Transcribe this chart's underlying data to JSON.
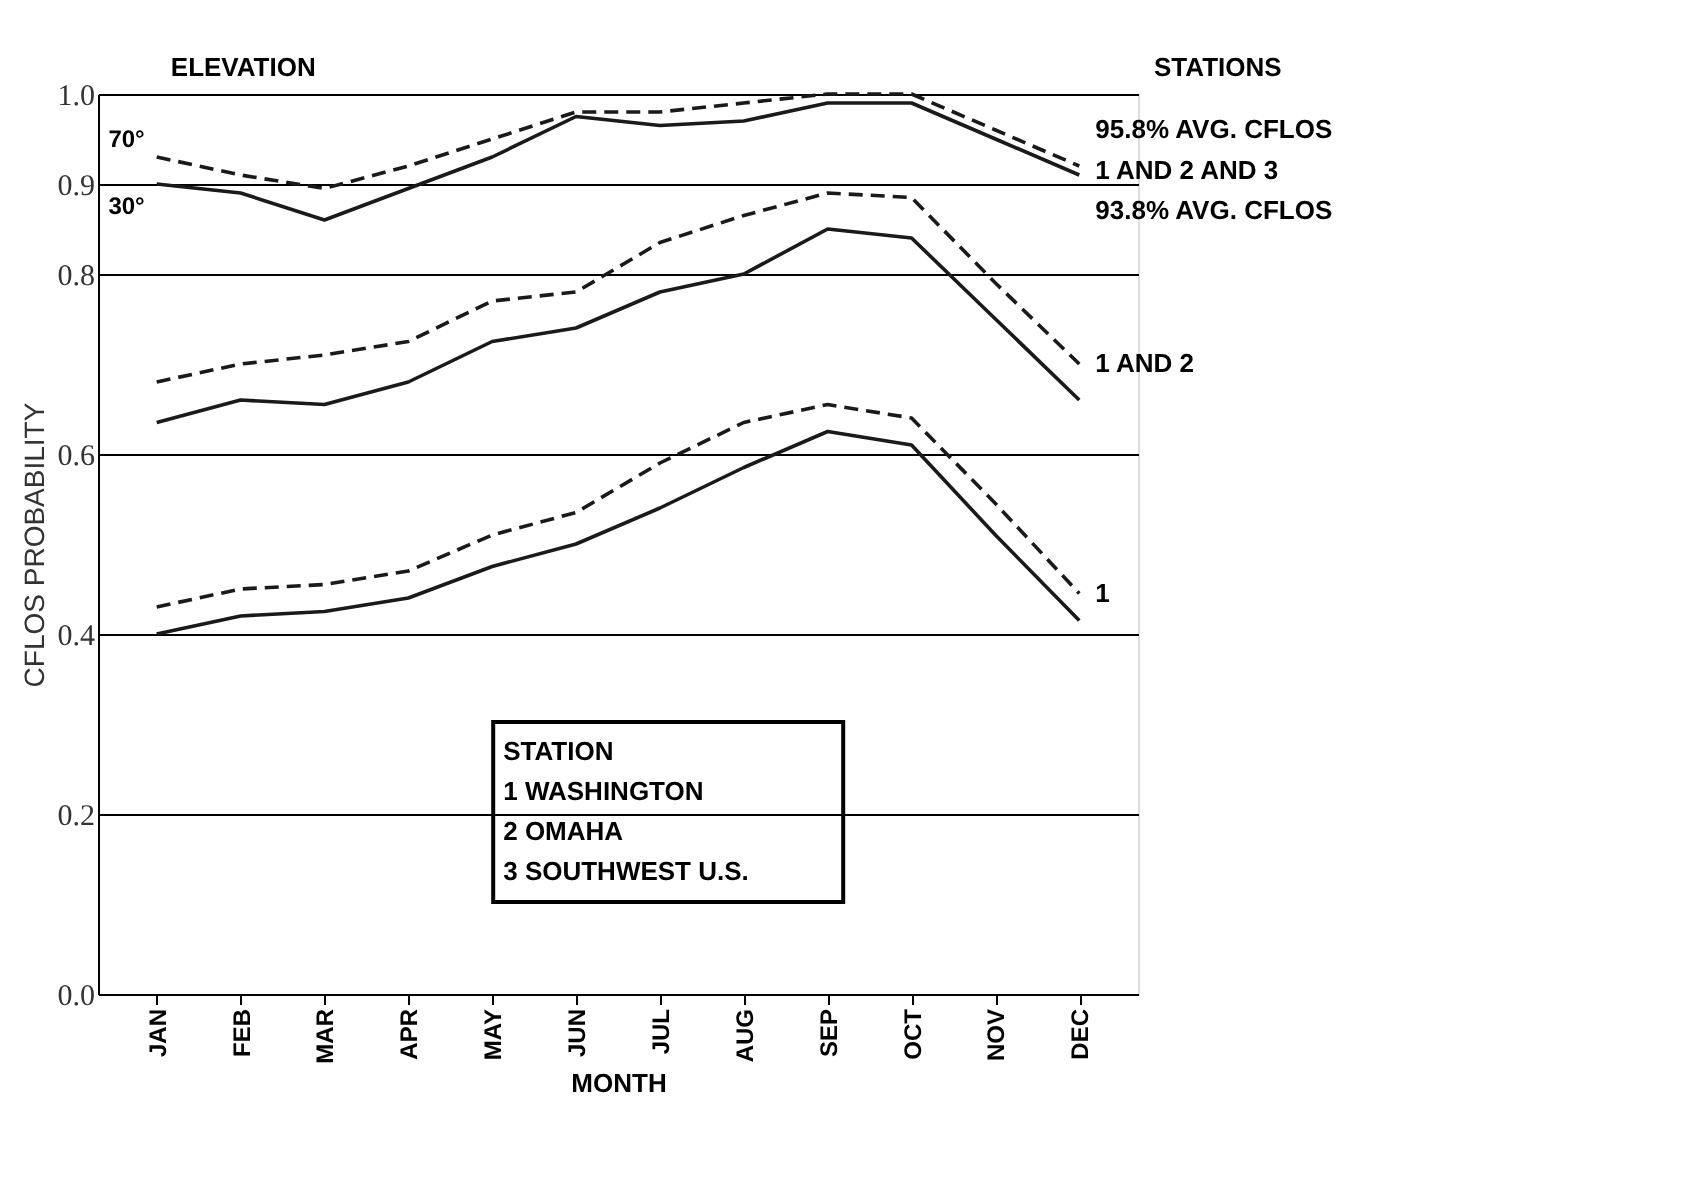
{
  "chart_data": {
    "type": "line",
    "xlabel": "MONTH",
    "ylabel": "CFLOS PROBABILITY",
    "categories": [
      "JAN",
      "FEB",
      "MAR",
      "APR",
      "MAY",
      "JUN",
      "JUL",
      "AUG",
      "SEP",
      "OCT",
      "NOV",
      "DEC"
    ],
    "ylim": [
      0,
      1
    ],
    "yticks": [
      {
        "value": 0,
        "label": "0.0"
      },
      {
        "value": 0.2,
        "label": "0.2"
      },
      {
        "value": 0.4,
        "label": "0.4"
      },
      {
        "value": 0.6,
        "label": "0.6"
      },
      {
        "value": 0.8,
        "label": "0.8"
      },
      {
        "value": 0.9,
        "label": "0.9"
      },
      {
        "value": 1,
        "label": "1.0"
      }
    ],
    "grid": "y",
    "marker": "none",
    "series": [
      {
        "name": "70°",
        "color": "#1a1a1a",
        "line_style": "dashed",
        "values": [
          0.93,
          0.91,
          0.895,
          0.92,
          0.95,
          0.98,
          0.98,
          0.99,
          1.0,
          1.0,
          0.96,
          0.92
        ]
      },
      {
        "name": "30°",
        "color": "#1a1a1a",
        "line_style": "solid",
        "values": [
          0.9,
          0.89,
          0.86,
          0.895,
          0.93,
          0.975,
          0.965,
          0.97,
          0.99,
          0.99,
          0.95,
          0.91
        ]
      },
      {
        "color": "#1a1a1a",
        "line_style": "dashed",
        "values": [
          0.68,
          0.7,
          0.71,
          0.725,
          0.77,
          0.78,
          0.835,
          0.865,
          0.89,
          0.885,
          0.79,
          0.7
        ]
      },
      {
        "color": "#1a1a1a",
        "line_style": "solid",
        "values": [
          0.635,
          0.66,
          0.655,
          0.68,
          0.725,
          0.74,
          0.78,
          0.8,
          0.85,
          0.84,
          0.75,
          0.66
        ]
      },
      {
        "color": "#1a1a1a",
        "line_style": "dashed",
        "values": [
          0.43,
          0.45,
          0.455,
          0.47,
          0.51,
          0.535,
          0.59,
          0.635,
          0.655,
          0.64,
          0.545,
          0.445
        ]
      },
      {
        "color": "#1a1a1a",
        "line_style": "solid",
        "values": [
          0.4,
          0.42,
          0.425,
          0.44,
          0.475,
          0.5,
          0.54,
          0.585,
          0.625,
          0.61,
          0.51,
          0.415
        ]
      }
    ],
    "annotations": [
      "ELEVATION",
      "STATIONS",
      {
        "text": "1 AND 2 AND 3",
        "x": "DEC",
        "y": 0.915
      },
      {
        "text": "95.8% AVG. CFLOS",
        "x": "DEC",
        "y": 0.92
      },
      {
        "text": "93.8% AVG. CFLOS",
        "x": "DEC",
        "y": 0.91
      },
      {
        "text": "1 AND 2",
        "x": "DEC",
        "y": 0.7
      },
      {
        "text": "1",
        "x": "DEC",
        "y": 0.445
      },
      "STATION",
      "1 WASHINGTON",
      "2 OMAHA",
      "3 SOUTHWEST U.S."
    ]
  }
}
